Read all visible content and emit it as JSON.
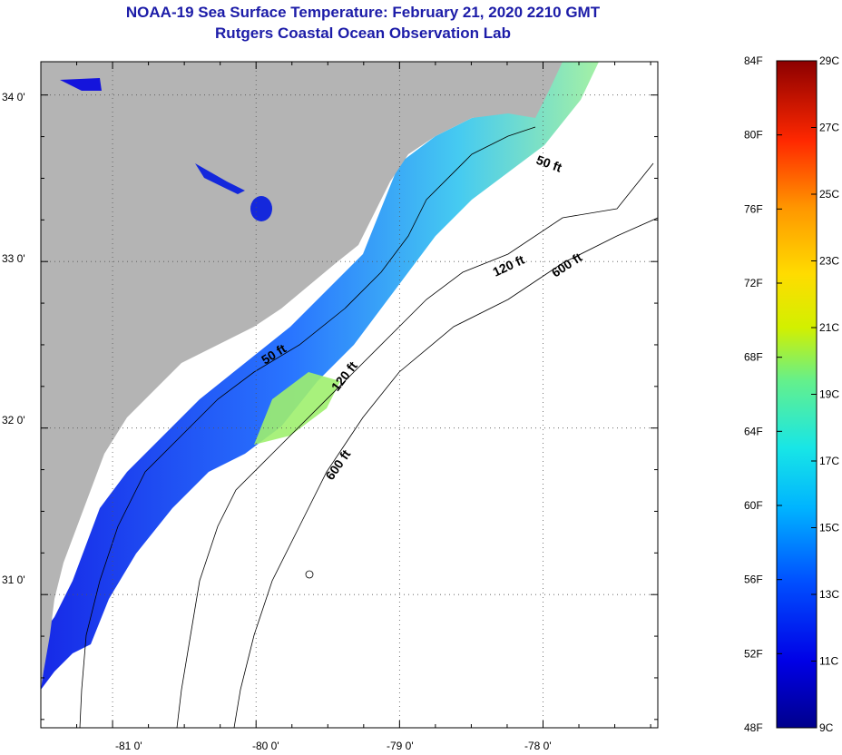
{
  "title": "NOAA-19 Sea Surface Temperature:  February 21, 2020 2210 GMT",
  "subtitle": "Rutgers Coastal Ocean Observation Lab",
  "map": {
    "lat_ticks": [
      {
        "label": "34 0'",
        "lat": 34.0
      },
      {
        "label": "33 0'",
        "lat": 33.0
      },
      {
        "label": "32 0'",
        "lat": 32.0
      },
      {
        "label": "31 0'",
        "lat": 31.0
      }
    ],
    "lon_ticks": [
      {
        "label": "-81 0'",
        "lon": -81.0
      },
      {
        "label": "-80 0'",
        "lon": -80.0
      },
      {
        "label": "-79 0'",
        "lon": -79.0
      },
      {
        "label": "-78 0'",
        "lon": -78.0
      }
    ],
    "lat_range": [
      30.2,
      34.2
    ],
    "lon_range": [
      -81.5,
      -77.2
    ],
    "contour_labels": [
      {
        "text": "50 ft",
        "id": "contour-50ft-north"
      },
      {
        "text": "50 ft",
        "id": "contour-50ft-south"
      },
      {
        "text": "120 ft",
        "id": "contour-120ft-north"
      },
      {
        "text": "120 ft",
        "id": "contour-120ft-south"
      },
      {
        "text": "600 ft",
        "id": "contour-600ft-north"
      },
      {
        "text": "600 ft",
        "id": "contour-600ft-south"
      }
    ],
    "land_color": "#b4b4b4"
  },
  "colorbar": {
    "fahrenheit": [
      "84F",
      "80F",
      "76F",
      "72F",
      "68F",
      "64F",
      "60F",
      "56F",
      "52F",
      "48F"
    ],
    "celsius": [
      "29C",
      "27C",
      "25C",
      "23C",
      "21C",
      "19C",
      "17C",
      "15C",
      "13C",
      "11C",
      "9C"
    ]
  }
}
